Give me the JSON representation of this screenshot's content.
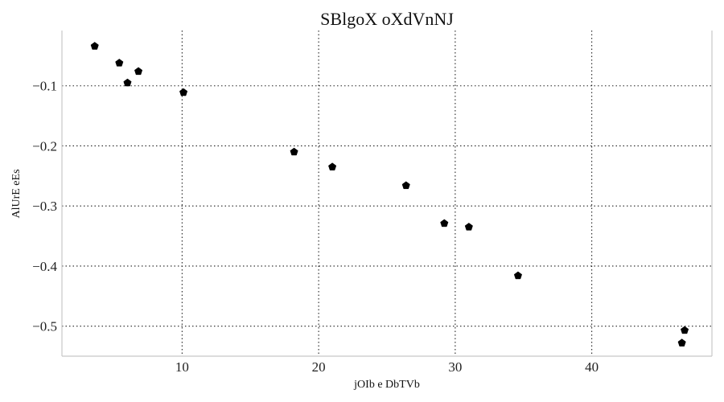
{
  "chart_data": {
    "type": "scatter",
    "title": "SBlgoX  oXdVnNJ",
    "xlabel": "jOIb e DbTVb",
    "ylabel": "AlUrE eEs",
    "xlim": [
      1.2,
      48.8
    ],
    "ylim": [
      -0.55,
      -0.008
    ],
    "x_ticks": [
      10,
      20,
      30,
      40
    ],
    "x_tick_labels": [
      "10",
      "20",
      "30",
      "40"
    ],
    "y_ticks": [
      -0.1,
      -0.2,
      -0.3,
      -0.4,
      -0.5
    ],
    "y_tick_labels": [
      "−0.1",
      "−0.2",
      "−0.3",
      "−0.4",
      "−0.5"
    ],
    "grid": true,
    "marker": "pentagon",
    "marker_color": "#000000",
    "series": [
      {
        "x": [
          3.6,
          5.4,
          6.0,
          6.8,
          10.1,
          18.2,
          21.0,
          26.4,
          29.2,
          31.0,
          34.6,
          46.6,
          46.8
        ],
        "y": [
          -0.034,
          -0.062,
          -0.095,
          -0.076,
          -0.111,
          -0.21,
          -0.235,
          -0.266,
          -0.329,
          -0.335,
          -0.416,
          -0.528,
          -0.507
        ]
      }
    ]
  }
}
